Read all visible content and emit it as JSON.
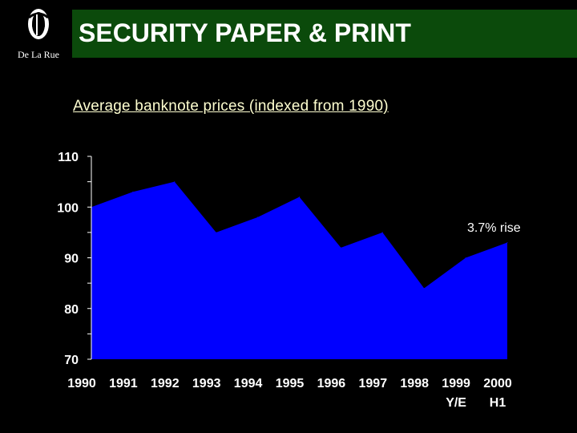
{
  "logo": {
    "icon": "delarue-logo-icon",
    "text": "De La Rue"
  },
  "header": {
    "title": "SECURITY PAPER & PRINT",
    "background": "#0b4a0b"
  },
  "chart_data": {
    "type": "area",
    "title": "Average banknote prices (indexed from 1990)",
    "xlabel": "",
    "ylabel": "",
    "categories": [
      "1990",
      "1991",
      "1992",
      "1993",
      "1994",
      "1995",
      "1996",
      "1997",
      "1998",
      "1999",
      "2000"
    ],
    "category_sublabels": [
      "",
      "",
      "",
      "",
      "",
      "",
      "",
      "",
      "",
      "Y/E",
      "H1"
    ],
    "values": [
      100,
      103,
      105,
      95,
      98,
      102,
      92,
      95,
      84,
      90,
      93
    ],
    "ylim": [
      70,
      110
    ],
    "yticks": [
      70,
      80,
      90,
      100,
      110
    ],
    "grid": false,
    "fill_color": "#0000ff",
    "annotation": "3.7% rise"
  }
}
